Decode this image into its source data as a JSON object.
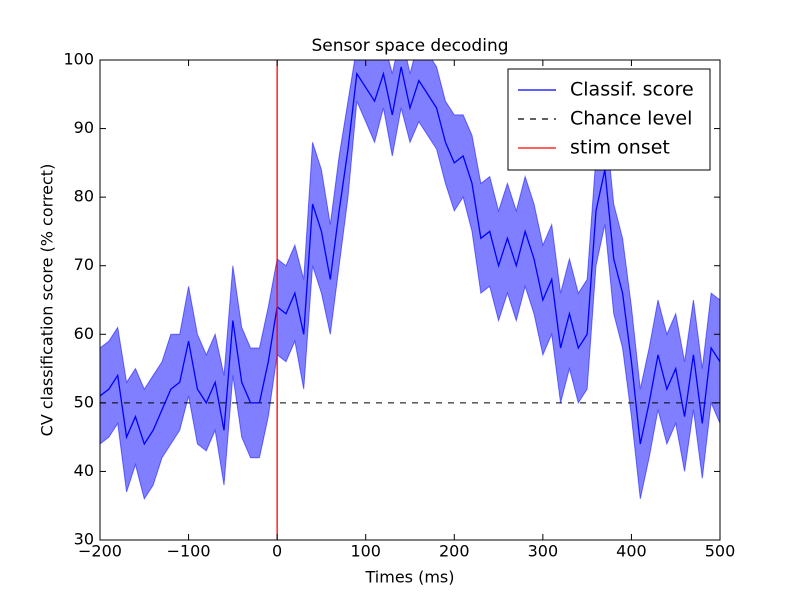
{
  "chart_data": {
    "type": "line",
    "title": "Sensor space decoding",
    "x_label": "Times (ms)",
    "y_label": "CV classification score (% correct)",
    "x": [
      -200,
      -190,
      -180,
      -170,
      -160,
      -150,
      -140,
      -130,
      -120,
      -110,
      -100,
      -90,
      -80,
      -70,
      -60,
      -50,
      -40,
      -30,
      -20,
      -10,
      0,
      10,
      20,
      30,
      40,
      50,
      60,
      70,
      80,
      90,
      100,
      110,
      120,
      130,
      140,
      150,
      160,
      170,
      180,
      190,
      200,
      210,
      220,
      230,
      240,
      250,
      260,
      270,
      280,
      290,
      300,
      310,
      320,
      330,
      340,
      350,
      360,
      370,
      380,
      390,
      400,
      410,
      420,
      430,
      440,
      450,
      460,
      470,
      480,
      490,
      500
    ],
    "series": [
      {
        "name": "Classif. score",
        "color": "#0000ff",
        "values": [
          51,
          52,
          54,
          45,
          48,
          44,
          46,
          49,
          52,
          53,
          59,
          52,
          50,
          53,
          46,
          62,
          53,
          50,
          50,
          56,
          64,
          63,
          66,
          60,
          79,
          75,
          68,
          78,
          87,
          98,
          96,
          94,
          98,
          92,
          99,
          93,
          97,
          95,
          93,
          88,
          85,
          86,
          82,
          74,
          75,
          70,
          74,
          70,
          75,
          71,
          65,
          68,
          58,
          63,
          58,
          60,
          78,
          84,
          71,
          66,
          56,
          44,
          50,
          57,
          52,
          55,
          48,
          57,
          47,
          58,
          56
        ]
      }
    ],
    "band": {
      "color": "#0000ff",
      "lower": [
        44,
        45,
        47,
        37,
        41,
        36,
        38,
        42,
        44,
        46,
        51,
        44,
        43,
        46,
        38,
        54,
        45,
        42,
        42,
        48,
        57,
        56,
        59,
        52,
        70,
        66,
        60,
        70,
        80,
        94,
        91,
        88,
        93,
        86,
        93,
        88,
        91,
        89,
        87,
        82,
        78,
        80,
        75,
        66,
        67,
        62,
        66,
        62,
        67,
        63,
        57,
        60,
        50,
        55,
        50,
        52,
        70,
        76,
        63,
        58,
        48,
        36,
        42,
        49,
        44,
        47,
        40,
        49,
        39,
        50,
        47
      ],
      "upper": [
        58,
        59,
        61,
        53,
        55,
        52,
        54,
        56,
        60,
        60,
        67,
        60,
        57,
        60,
        54,
        70,
        61,
        58,
        58,
        64,
        71,
        70,
        73,
        68,
        88,
        84,
        76,
        86,
        94,
        102,
        101,
        100,
        103,
        98,
        104,
        98,
        103,
        101,
        99,
        94,
        92,
        92,
        89,
        82,
        83,
        78,
        82,
        78,
        83,
        79,
        73,
        76,
        66,
        71,
        66,
        68,
        86,
        92,
        79,
        74,
        64,
        52,
        58,
        65,
        60,
        63,
        56,
        65,
        55,
        66,
        65
      ]
    },
    "hlines": [
      {
        "name": "Chance level",
        "value": 50,
        "color": "#000000",
        "dash": true
      }
    ],
    "vlines": [
      {
        "name": "stim onset",
        "value": 0,
        "color": "#ff0000"
      }
    ],
    "xlim": [
      -200,
      500
    ],
    "xticks": [
      {
        "value": -200,
        "label": "−200"
      },
      {
        "value": -100,
        "label": "−100"
      },
      0,
      100,
      200,
      300,
      400,
      500
    ],
    "ylim": [
      30,
      100
    ],
    "yticks": [
      30,
      40,
      50,
      60,
      70,
      80,
      90,
      100
    ],
    "legend": "upper right"
  }
}
